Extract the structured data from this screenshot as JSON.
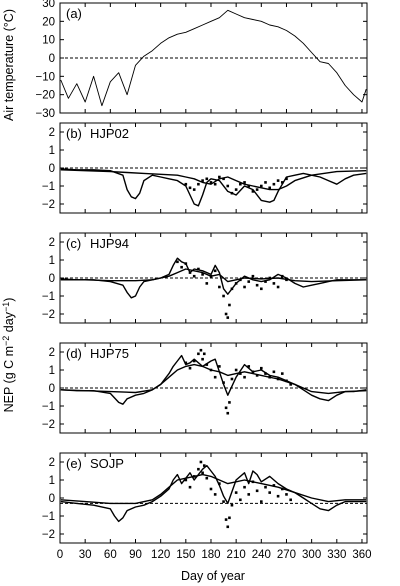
{
  "chart_data": [
    {
      "type": "line",
      "panel_label": "(a)",
      "site_label": "",
      "ylabel": "Air temperature (°C)",
      "ylim": [
        -30,
        30
      ],
      "yticks": [
        30,
        20,
        10,
        0,
        -10,
        -20,
        -30
      ],
      "xlim": [
        0,
        366
      ],
      "reference_line": 0,
      "series": [
        {
          "style": "thin-line",
          "x": [
            1,
            10,
            20,
            30,
            40,
            50,
            60,
            70,
            80,
            90,
            100,
            110,
            120,
            130,
            140,
            150,
            160,
            170,
            180,
            190,
            200,
            210,
            220,
            230,
            240,
            250,
            260,
            270,
            280,
            290,
            300,
            310,
            320,
            330,
            340,
            350,
            360,
            365
          ],
          "y": [
            -12,
            -22,
            -14,
            -24,
            -10,
            -26,
            -13,
            -8,
            -20,
            -4,
            1,
            4,
            8,
            11,
            13,
            14,
            16,
            18,
            20,
            22,
            26,
            24,
            22,
            21,
            20,
            18,
            17,
            15,
            12,
            8,
            3,
            -2,
            -3,
            -8,
            -15,
            -20,
            -24,
            -17
          ]
        }
      ]
    },
    {
      "type": "line",
      "panel_label": "(b)",
      "site_label": "HJP02",
      "ylabel": "",
      "ylim": [
        -2.5,
        2.5
      ],
      "yticks": [
        2,
        1,
        0,
        -1,
        -2
      ],
      "xlim": [
        0,
        366
      ],
      "reference_line": 0,
      "series": [
        {
          "style": "solid-line",
          "x": [
            1,
            20,
            40,
            60,
            75,
            80,
            85,
            90,
            95,
            100,
            110,
            120,
            130,
            140,
            150,
            155,
            160,
            165,
            170,
            175,
            180,
            190,
            200,
            210,
            220,
            230,
            240,
            250,
            255,
            260,
            265,
            270,
            280,
            290,
            300,
            310,
            320,
            330,
            340,
            350,
            365
          ],
          "y": [
            -0.05,
            -0.1,
            -0.1,
            -0.15,
            -0.4,
            -1.2,
            -1.6,
            -1.7,
            -1.4,
            -0.7,
            -0.4,
            -0.5,
            -0.6,
            -0.7,
            -1.0,
            -1.5,
            -2.0,
            -2.1,
            -1.5,
            -0.8,
            -0.6,
            -0.7,
            -1.3,
            -1.5,
            -1.0,
            -1.2,
            -1.8,
            -1.9,
            -1.8,
            -1.3,
            -0.9,
            -0.5,
            -0.4,
            -0.3,
            -0.4,
            -0.5,
            -0.7,
            -0.9,
            -0.6,
            -0.4,
            -0.3
          ]
        },
        {
          "style": "solid-line-heavy",
          "x": [
            1,
            30,
            60,
            80,
            100,
            120,
            140,
            150,
            160,
            170,
            180,
            190,
            200,
            210,
            220,
            230,
            240,
            250,
            260,
            270,
            280,
            300,
            330,
            365
          ],
          "y": [
            -0.1,
            -0.15,
            -0.2,
            -0.25,
            -0.3,
            -0.35,
            -0.4,
            -0.5,
            -0.6,
            -0.8,
            -0.9,
            -0.6,
            -0.5,
            -0.7,
            -0.9,
            -1.0,
            -1.1,
            -1.2,
            -1.2,
            -1.0,
            -0.7,
            -0.4,
            -0.2,
            -0.15
          ]
        },
        {
          "style": "dots",
          "x": [
            150,
            155,
            160,
            165,
            170,
            175,
            180,
            185,
            190,
            195,
            200,
            205,
            210,
            215,
            220,
            225,
            230,
            235,
            240,
            245,
            250,
            255,
            260,
            265,
            270
          ],
          "y": [
            -0.9,
            -1.1,
            -1.2,
            -0.9,
            -0.7,
            -0.6,
            -0.8,
            -0.9,
            -0.5,
            -0.6,
            -1.0,
            -1.4,
            -1.2,
            -0.9,
            -0.8,
            -1.0,
            -1.3,
            -1.2,
            -1.0,
            -0.8,
            -1.1,
            -0.9,
            -0.7,
            -0.8,
            -0.6
          ]
        }
      ]
    },
    {
      "type": "line",
      "panel_label": "(c)",
      "site_label": "HJP94",
      "ylabel": "",
      "ylim": [
        -2.5,
        2.5
      ],
      "yticks": [
        2,
        1,
        0,
        -1,
        -2
      ],
      "xlim": [
        0,
        366
      ],
      "reference_line": 0,
      "series": [
        {
          "style": "solid-line",
          "x": [
            1,
            20,
            40,
            60,
            75,
            80,
            85,
            90,
            95,
            100,
            110,
            120,
            130,
            135,
            140,
            145,
            150,
            155,
            160,
            170,
            180,
            185,
            190,
            195,
            200,
            210,
            220,
            230,
            240,
            250,
            260,
            270,
            280,
            290,
            300,
            310,
            320,
            330,
            340,
            350,
            365
          ],
          "y": [
            -0.05,
            -0.1,
            -0.1,
            -0.2,
            -0.4,
            -0.8,
            -1.1,
            -1.0,
            -0.5,
            -0.2,
            -0.1,
            0.0,
            0.2,
            0.7,
            1.1,
            0.9,
            0.8,
            0.3,
            0.5,
            0.4,
            0.2,
            0.7,
            0.3,
            -0.6,
            -0.9,
            -0.3,
            0.1,
            -0.1,
            -0.2,
            -0.1,
            0.2,
            0.0,
            -0.3,
            -0.5,
            -0.4,
            -0.3,
            -0.2,
            -0.1,
            -0.1,
            -0.1,
            -0.1
          ]
        },
        {
          "style": "solid-line-heavy",
          "x": [
            1,
            30,
            60,
            90,
            110,
            130,
            140,
            150,
            160,
            170,
            180,
            190,
            200,
            210,
            220,
            240,
            260,
            280,
            300,
            330,
            365
          ],
          "y": [
            -0.1,
            -0.1,
            -0.15,
            -0.15,
            -0.1,
            0.1,
            0.3,
            0.5,
            0.4,
            0.3,
            0.1,
            0.2,
            -0.2,
            -0.1,
            0.0,
            -0.05,
            0.0,
            -0.15,
            -0.2,
            -0.15,
            -0.1
          ]
        },
        {
          "style": "dots",
          "x": [
            140,
            145,
            150,
            155,
            160,
            165,
            170,
            175,
            180,
            185,
            190,
            195,
            198,
            200,
            202,
            205,
            210,
            215,
            220,
            225,
            230,
            235,
            240,
            245,
            250,
            255,
            260,
            265,
            270
          ],
          "y": [
            0.9,
            0.6,
            0.8,
            0.3,
            0.1,
            0.5,
            0.2,
            -0.3,
            0.1,
            0.4,
            -0.5,
            -1.0,
            -2.0,
            -2.2,
            -1.5,
            -0.6,
            -0.3,
            -0.1,
            -0.5,
            -0.2,
            0.1,
            -0.4,
            -0.6,
            -0.2,
            0.0,
            -0.3,
            -0.5,
            0.1,
            -0.1
          ]
        }
      ]
    },
    {
      "type": "line",
      "panel_label": "(d)",
      "site_label": "HJP75",
      "ylabel": "",
      "ylim": [
        -2.5,
        2.5
      ],
      "yticks": [
        2,
        1,
        0,
        -1,
        -2
      ],
      "xlim": [
        0,
        366
      ],
      "reference_line": 0,
      "series": [
        {
          "style": "solid-line",
          "x": [
            1,
            20,
            40,
            60,
            70,
            75,
            80,
            90,
            100,
            110,
            120,
            130,
            135,
            140,
            145,
            150,
            155,
            160,
            170,
            180,
            185,
            190,
            195,
            200,
            210,
            220,
            230,
            240,
            250,
            260,
            270,
            280,
            290,
            300,
            310,
            320,
            330,
            340,
            350,
            365
          ],
          "y": [
            -0.1,
            -0.15,
            -0.15,
            -0.3,
            -0.8,
            -0.9,
            -0.6,
            -0.4,
            -0.3,
            -0.1,
            0.2,
            0.8,
            1.2,
            1.5,
            1.8,
            1.3,
            1.4,
            1.6,
            1.2,
            1.5,
            1.6,
            0.9,
            0.2,
            -0.4,
            0.6,
            1.3,
            0.9,
            1.0,
            0.7,
            0.6,
            0.4,
            0.2,
            -0.1,
            -0.4,
            -0.6,
            -0.7,
            -0.4,
            -0.2,
            -0.2,
            -0.1
          ]
        },
        {
          "style": "solid-line-heavy",
          "x": [
            1,
            30,
            60,
            90,
            110,
            120,
            130,
            140,
            150,
            160,
            170,
            180,
            190,
            200,
            210,
            220,
            230,
            240,
            260,
            280,
            300,
            320,
            340,
            365
          ],
          "y": [
            -0.1,
            -0.15,
            -0.2,
            -0.25,
            -0.1,
            0.2,
            0.6,
            1.0,
            1.2,
            1.3,
            1.2,
            1.0,
            0.9,
            0.7,
            0.8,
            0.9,
            0.8,
            0.7,
            0.5,
            0.2,
            -0.2,
            -0.3,
            -0.2,
            -0.15
          ]
        },
        {
          "style": "dots",
          "x": [
            150,
            155,
            160,
            165,
            168,
            170,
            172,
            175,
            180,
            185,
            190,
            195,
            198,
            200,
            202,
            205,
            210,
            215,
            220,
            225,
            230,
            235,
            240,
            245,
            250,
            255,
            260,
            265,
            270,
            275
          ],
          "y": [
            1.4,
            1.1,
            1.5,
            1.9,
            2.1,
            1.6,
            1.9,
            1.3,
            1.0,
            0.6,
            1.2,
            0.3,
            -1.1,
            -1.4,
            -0.8,
            0.5,
            1.0,
            0.8,
            0.6,
            1.2,
            0.9,
            0.7,
            1.1,
            0.8,
            0.6,
            0.9,
            0.5,
            0.8,
            0.4,
            0.2
          ]
        }
      ]
    },
    {
      "type": "line",
      "panel_label": "(e)",
      "site_label": "SOJP",
      "ylabel": "",
      "ylim": [
        -2.5,
        2.5
      ],
      "yticks": [
        2,
        1,
        0,
        -1,
        -2
      ],
      "xlim": [
        0,
        366
      ],
      "reference_line": -0.3,
      "series": [
        {
          "style": "solid-line",
          "x": [
            1,
            20,
            40,
            60,
            65,
            70,
            75,
            80,
            90,
            100,
            110,
            120,
            130,
            135,
            140,
            145,
            150,
            155,
            160,
            165,
            170,
            175,
            180,
            185,
            190,
            195,
            200,
            210,
            220,
            225,
            230,
            235,
            240,
            250,
            260,
            270,
            280,
            290,
            300,
            310,
            320,
            330,
            340,
            350,
            365
          ],
          "y": [
            -0.2,
            -0.3,
            -0.4,
            -0.6,
            -1.0,
            -1.3,
            -1.1,
            -0.7,
            -0.5,
            -0.4,
            -0.2,
            0.1,
            0.5,
            1.0,
            1.3,
            0.8,
            1.1,
            1.4,
            1.0,
            1.3,
            1.6,
            1.8,
            1.5,
            1.2,
            0.7,
            0.1,
            -0.3,
            1.0,
            1.4,
            0.8,
            1.5,
            1.3,
            0.9,
            1.2,
            0.8,
            0.5,
            0.3,
            0.0,
            -0.3,
            -0.6,
            -0.7,
            -0.4,
            -0.2,
            -0.2,
            -0.2
          ]
        },
        {
          "style": "solid-line-heavy",
          "x": [
            1,
            30,
            60,
            90,
            110,
            120,
            130,
            140,
            150,
            160,
            170,
            180,
            190,
            200,
            210,
            220,
            230,
            240,
            260,
            280,
            300,
            320,
            340,
            365
          ],
          "y": [
            -0.1,
            -0.2,
            -0.3,
            -0.3,
            -0.1,
            0.2,
            0.6,
            1.0,
            1.1,
            1.2,
            1.3,
            1.2,
            1.0,
            0.8,
            0.9,
            1.0,
            0.9,
            0.8,
            0.6,
            0.3,
            0.0,
            -0.2,
            -0.1,
            -0.1
          ]
        },
        {
          "style": "dots",
          "x": [
            150,
            155,
            160,
            165,
            168,
            170,
            172,
            175,
            180,
            185,
            190,
            195,
            198,
            200,
            202,
            205,
            210,
            215,
            220,
            225,
            230,
            235,
            240,
            245,
            250,
            255,
            260,
            265,
            270,
            275
          ],
          "y": [
            1.0,
            0.6,
            1.2,
            1.6,
            2.0,
            1.4,
            1.8,
            1.1,
            0.5,
            0.2,
            0.8,
            -0.2,
            -1.2,
            -1.6,
            -1.1,
            -0.4,
            0.3,
            -0.1,
            0.6,
            0.2,
            0.9,
            0.4,
            -0.2,
            0.6,
            0.3,
            0.7,
            0.1,
            0.5,
            0.2,
            -0.1
          ]
        }
      ]
    }
  ],
  "shared": {
    "xlabel": "Day of year",
    "xticks": [
      0,
      30,
      60,
      90,
      120,
      150,
      180,
      210,
      240,
      270,
      300,
      330,
      360
    ],
    "nep_ylabel_main": "NEP (g C m",
    "nep_ylabel_exp1": "−2",
    "nep_ylabel_mid": " day",
    "nep_ylabel_exp2": "−1",
    "nep_ylabel_end": ")"
  }
}
